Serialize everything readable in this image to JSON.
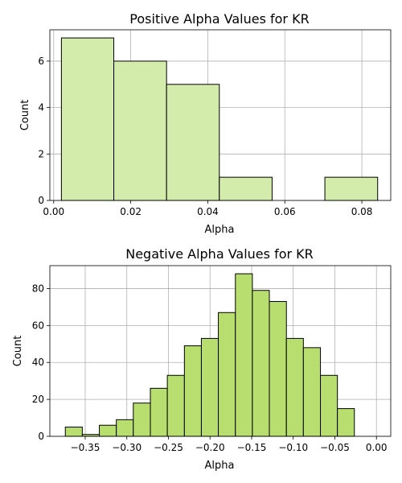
{
  "chart_data": [
    {
      "type": "bar",
      "title": "Positive Alpha Values for KR",
      "xlabel": "Alpha",
      "ylabel": "Count",
      "bar_color": "#d3ebab",
      "grid": true,
      "xlim": [
        -0.001,
        0.0875
      ],
      "ylim": [
        0,
        7.35
      ],
      "xticks": [
        0.0,
        0.02,
        0.04,
        0.06,
        0.08
      ],
      "xtick_labels": [
        "0.00",
        "0.02",
        "0.04",
        "0.06",
        "0.08"
      ],
      "yticks": [
        0,
        2,
        4,
        6
      ],
      "ytick_labels": [
        "0",
        "2",
        "4",
        "6"
      ],
      "bins": [
        {
          "x0": 0.002,
          "x1": 0.0156,
          "count": 7
        },
        {
          "x0": 0.0156,
          "x1": 0.0293,
          "count": 6
        },
        {
          "x0": 0.0293,
          "x1": 0.043,
          "count": 5
        },
        {
          "x0": 0.043,
          "x1": 0.0567,
          "count": 1
        },
        {
          "x0": 0.0567,
          "x1": 0.0704,
          "count": 0
        },
        {
          "x0": 0.0704,
          "x1": 0.0841,
          "count": 1
        }
      ]
    },
    {
      "type": "bar",
      "title": "Negative Alpha Values for KR",
      "xlabel": "Alpha",
      "ylabel": "Count",
      "bar_color": "#b8de6f",
      "grid": true,
      "xlim": [
        -0.3925,
        0.0172
      ],
      "ylim": [
        0,
        92.4
      ],
      "xticks": [
        -0.35,
        -0.3,
        -0.25,
        -0.2,
        -0.15,
        -0.1,
        -0.05,
        0.0
      ],
      "xtick_labels": [
        "−0.35",
        "−0.30",
        "−0.25",
        "−0.20",
        "−0.15",
        "−0.10",
        "−0.05",
        "0.00"
      ],
      "yticks": [
        0,
        20,
        40,
        60,
        80
      ],
      "ytick_labels": [
        "0",
        "20",
        "40",
        "60",
        "80"
      ],
      "bins": [
        {
          "x0": -0.3739,
          "x1": -0.3535,
          "count": 5
        },
        {
          "x0": -0.3535,
          "x1": -0.333,
          "count": 1
        },
        {
          "x0": -0.333,
          "x1": -0.3126,
          "count": 6
        },
        {
          "x0": -0.3126,
          "x1": -0.2922,
          "count": 9
        },
        {
          "x0": -0.2922,
          "x1": -0.2717,
          "count": 18
        },
        {
          "x0": -0.2717,
          "x1": -0.2513,
          "count": 26
        },
        {
          "x0": -0.2513,
          "x1": -0.2308,
          "count": 33
        },
        {
          "x0": -0.2308,
          "x1": -0.2104,
          "count": 49
        },
        {
          "x0": -0.2104,
          "x1": -0.19,
          "count": 53
        },
        {
          "x0": -0.19,
          "x1": -0.1695,
          "count": 67
        },
        {
          "x0": -0.1695,
          "x1": -0.1491,
          "count": 88
        },
        {
          "x0": -0.1491,
          "x1": -0.1287,
          "count": 79
        },
        {
          "x0": -0.1287,
          "x1": -0.1082,
          "count": 73
        },
        {
          "x0": -0.1082,
          "x1": -0.0878,
          "count": 53
        },
        {
          "x0": -0.0878,
          "x1": -0.0673,
          "count": 48
        },
        {
          "x0": -0.0673,
          "x1": -0.0469,
          "count": 33
        },
        {
          "x0": -0.0469,
          "x1": -0.0265,
          "count": 15
        }
      ]
    }
  ]
}
